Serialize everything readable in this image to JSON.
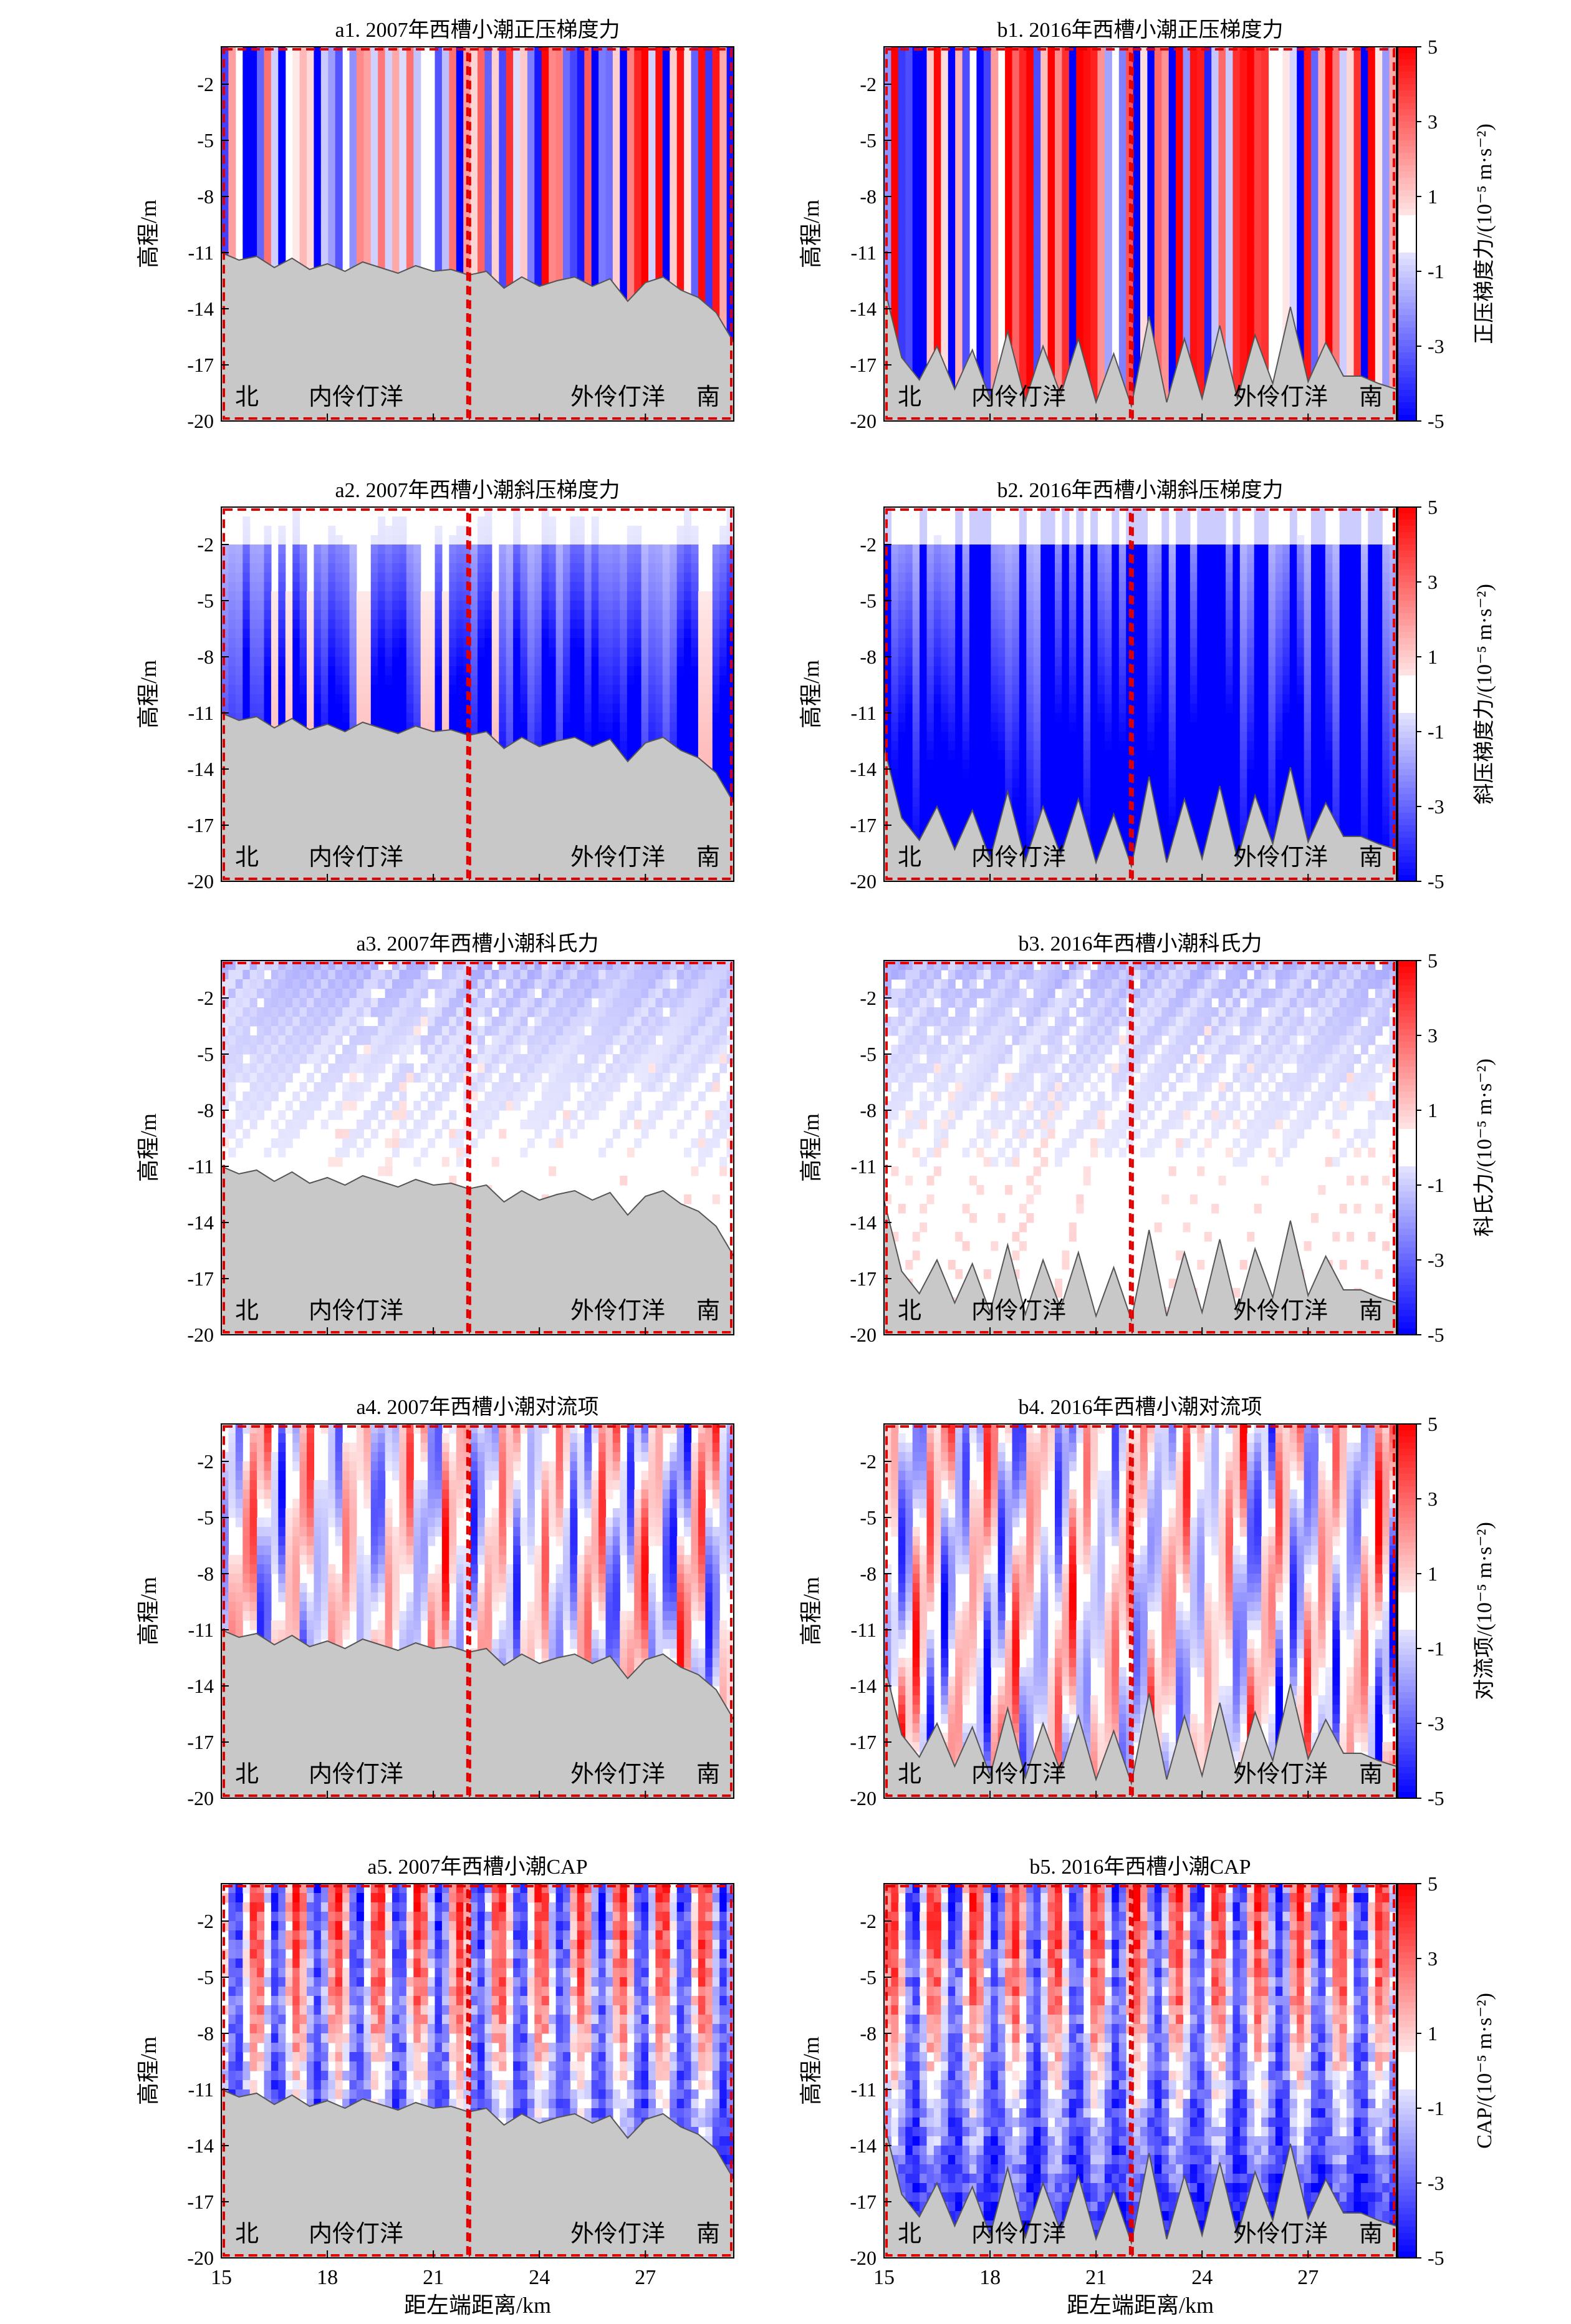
{
  "figure": {
    "xlabel": "距左端距离/km",
    "ylabel": "高程/m",
    "x_ticks": [
      15,
      18,
      21,
      24,
      27
    ],
    "y_ticks": [
      -2,
      -5,
      -8,
      -11,
      -14,
      -17,
      -20
    ],
    "colorbar_ticks": [
      5,
      3,
      1,
      -1,
      -3,
      -5
    ],
    "region_labels": {
      "north": "北",
      "inner": "内伶仃洋",
      "outer": "外伶仃洋",
      "south": "南"
    }
  },
  "colors": {
    "positive": "#ff0000",
    "negative": "#0000ff",
    "terrain": "#c8c8c8",
    "dashed_border": "#e00000"
  },
  "chart_data": [
    {
      "type": "heatmap",
      "id": "a1",
      "title": "a1. 2007年西槽小潮正压梯度力",
      "pattern": "barotropic",
      "year": 2007,
      "xlim": [
        15,
        29.5
      ],
      "ylim": [
        -20,
        0
      ]
    },
    {
      "type": "heatmap",
      "id": "b1",
      "title": "b1. 2016年西槽小潮正压梯度力",
      "pattern": "barotropic",
      "year": 2016,
      "xlim": [
        15,
        29.5
      ],
      "ylim": [
        -20,
        0
      ],
      "colorbar_label": "正压梯度力/(10⁻⁵ m·s⁻²)",
      "colorbar_range": [
        -5,
        5
      ]
    },
    {
      "type": "heatmap",
      "id": "a2",
      "title": "a2. 2007年西槽小潮斜压梯度力",
      "pattern": "baroclinic",
      "year": 2007,
      "xlim": [
        15,
        29.5
      ],
      "ylim": [
        -20,
        0
      ]
    },
    {
      "type": "heatmap",
      "id": "b2",
      "title": "b2. 2016年西槽小潮斜压梯度力",
      "pattern": "baroclinic",
      "year": 2016,
      "xlim": [
        15,
        29.5
      ],
      "ylim": [
        -20,
        0
      ],
      "colorbar_label": "斜压梯度力/(10⁻⁵ m·s⁻²)",
      "colorbar_range": [
        -5,
        5
      ]
    },
    {
      "type": "heatmap",
      "id": "a3",
      "title": "a3. 2007年西槽小潮科氏力",
      "pattern": "coriolis",
      "year": 2007,
      "xlim": [
        15,
        29.5
      ],
      "ylim": [
        -20,
        0
      ]
    },
    {
      "type": "heatmap",
      "id": "b3",
      "title": "b3. 2016年西槽小潮科氏力",
      "pattern": "coriolis",
      "year": 2016,
      "xlim": [
        15,
        29.5
      ],
      "ylim": [
        -20,
        0
      ],
      "colorbar_label": "科氏力/(10⁻⁵ m·s⁻²)",
      "colorbar_range": [
        -5,
        5
      ]
    },
    {
      "type": "heatmap",
      "id": "a4",
      "title": "a4. 2007年西槽小潮对流项",
      "pattern": "advection",
      "year": 2007,
      "xlim": [
        15,
        29.5
      ],
      "ylim": [
        -20,
        0
      ]
    },
    {
      "type": "heatmap",
      "id": "b4",
      "title": "b4. 2016年西槽小潮对流项",
      "pattern": "advection",
      "year": 2016,
      "xlim": [
        15,
        29.5
      ],
      "ylim": [
        -20,
        0
      ],
      "colorbar_label": "对流项/(10⁻⁵ m·s⁻²)",
      "colorbar_range": [
        -5,
        5
      ]
    },
    {
      "type": "heatmap",
      "id": "a5",
      "title": "a5. 2007年西槽小潮CAP",
      "pattern": "cap",
      "year": 2007,
      "xlim": [
        15,
        29.5
      ],
      "ylim": [
        -20,
        0
      ]
    },
    {
      "type": "heatmap",
      "id": "b5",
      "title": "b5. 2016年西槽小潮CAP",
      "pattern": "cap",
      "year": 2016,
      "xlim": [
        15,
        29.5
      ],
      "ylim": [
        -20,
        0
      ],
      "colorbar_label": "CAP/(10⁻⁵ m·s⁻²)",
      "colorbar_range": [
        -5,
        5
      ]
    }
  ],
  "bathymetry": {
    "x": [
      15.0,
      15.5,
      16.0,
      16.5,
      17.0,
      17.5,
      18.0,
      18.5,
      19.0,
      19.5,
      20.0,
      20.5,
      21.0,
      21.5,
      22.0,
      22.5,
      23.0,
      23.5,
      24.0,
      24.5,
      25.0,
      25.5,
      26.0,
      26.5,
      27.0,
      27.5,
      28.0,
      28.5,
      29.0,
      29.5
    ],
    "depth_2007": [
      -11.0,
      -11.4,
      -11.2,
      -11.8,
      -11.3,
      -11.9,
      -11.6,
      -12.0,
      -11.5,
      -11.8,
      -12.1,
      -11.7,
      -12.0,
      -11.9,
      -12.2,
      -12.0,
      -12.9,
      -12.3,
      -12.8,
      -12.5,
      -12.3,
      -12.8,
      -12.4,
      -13.6,
      -12.6,
      -12.3,
      -13.0,
      -13.4,
      -14.2,
      -15.8
    ],
    "depth_2016": [
      -12.8,
      -16.6,
      -17.8,
      -16.0,
      -18.3,
      -16.2,
      -18.8,
      -15.2,
      -18.9,
      -16.0,
      -18.6,
      -15.6,
      -19.0,
      -16.4,
      -19.2,
      -14.4,
      -19.0,
      -15.6,
      -18.8,
      -14.9,
      -18.8,
      -15.4,
      -18.0,
      -13.9,
      -17.9,
      -15.8,
      -17.6,
      -17.6,
      -18.0,
      -18.3
    ]
  }
}
